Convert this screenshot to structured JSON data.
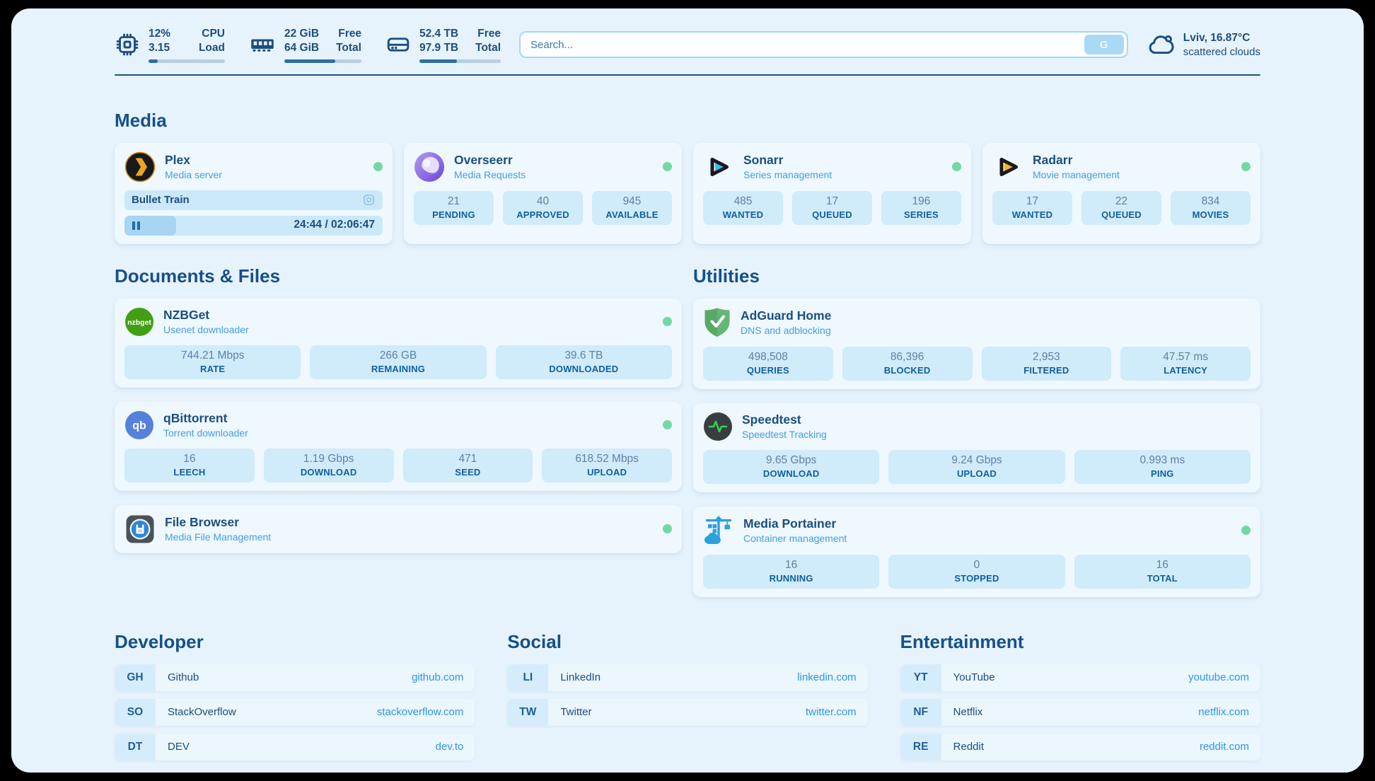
{
  "colors": {
    "page_bg": "#e7f3fc",
    "card_bg": "#eef8fe",
    "tile_bg": "#d0ebfa",
    "header_text": "#155089",
    "title_text": "#1c4e7e",
    "subtitle_text": "#459de2",
    "link_url": "#2e96e6",
    "status_online": "#72d9a2",
    "progress_fill": "#2e6da4"
  },
  "topbar": {
    "stats": [
      {
        "icon": "cpu-icon",
        "value_top": "12%",
        "value_bottom": "3.15",
        "label_top": "CPU",
        "label_bottom": "Load",
        "progress_pct": 12
      },
      {
        "icon": "ram-icon",
        "value_top": "22 GiB",
        "value_bottom": "64 GiB",
        "label_top": "Free",
        "label_bottom": "Total",
        "progress_pct": 66
      },
      {
        "icon": "disk-icon",
        "value_top": "52.4 TB",
        "value_bottom": "97.9 TB",
        "label_top": "Free",
        "label_bottom": "Total",
        "progress_pct": 46
      }
    ],
    "search": {
      "placeholder": "Search...",
      "button_label": "G"
    },
    "weather": {
      "icon": "cloud-icon",
      "location_temp": "Lviv, 16.87°C",
      "condition": "scattered clouds"
    }
  },
  "media": {
    "header": "Media",
    "plex": {
      "icon": "plex-icon",
      "title": "Plex",
      "subtitle": "Media server",
      "status": "online",
      "now_playing": "Bullet Train",
      "time_display": "24:44 / 02:06:47",
      "progress_pct": 20
    },
    "overseerr": {
      "icon": "overseerr-icon",
      "title": "Overseerr",
      "subtitle": "Media Requests",
      "status": "online",
      "stats": [
        {
          "value": "21",
          "label": "PENDING"
        },
        {
          "value": "40",
          "label": "APPROVED"
        },
        {
          "value": "945",
          "label": "AVAILABLE"
        }
      ]
    },
    "sonarr": {
      "icon": "sonarr-icon",
      "title": "Sonarr",
      "subtitle": "Series management",
      "status": "online",
      "stats": [
        {
          "value": "485",
          "label": "WANTED"
        },
        {
          "value": "17",
          "label": "QUEUED"
        },
        {
          "value": "196",
          "label": "SERIES"
        }
      ]
    },
    "radarr": {
      "icon": "radarr-icon",
      "title": "Radarr",
      "subtitle": "Movie management",
      "status": "online",
      "stats": [
        {
          "value": "17",
          "label": "WANTED"
        },
        {
          "value": "22",
          "label": "QUEUED"
        },
        {
          "value": "834",
          "label": "MOVIES"
        }
      ]
    }
  },
  "documents": {
    "header": "Documents & Files",
    "nzbget": {
      "icon": "nzbget-icon",
      "title": "NZBGet",
      "subtitle": "Usenet downloader",
      "status": "online",
      "stats": [
        {
          "value": "744.21 Mbps",
          "label": "RATE"
        },
        {
          "value": "266 GB",
          "label": "REMAINING"
        },
        {
          "value": "39.6 TB",
          "label": "DOWNLOADED"
        }
      ]
    },
    "qbittorrent": {
      "icon": "qbittorrent-icon",
      "title": "qBittorrent",
      "subtitle": "Torrent downloader",
      "status": "online",
      "stats": [
        {
          "value": "16",
          "label": "LEECH"
        },
        {
          "value": "1.19 Gbps",
          "label": "DOWNLOAD"
        },
        {
          "value": "471",
          "label": "SEED"
        },
        {
          "value": "618.52 Mbps",
          "label": "UPLOAD"
        }
      ]
    },
    "filebrowser": {
      "icon": "filebrowser-icon",
      "title": "File Browser",
      "subtitle": "Media File Management",
      "status": "online"
    }
  },
  "utilities": {
    "header": "Utilities",
    "adguard": {
      "icon": "adguard-icon",
      "title": "AdGuard Home",
      "subtitle": "DNS and adblocking",
      "stats": [
        {
          "value": "498,508",
          "label": "QUERIES"
        },
        {
          "value": "86,396",
          "label": "BLOCKED"
        },
        {
          "value": "2,953",
          "label": "FILTERED"
        },
        {
          "value": "47.57 ms",
          "label": "LATENCY"
        }
      ]
    },
    "speedtest": {
      "icon": "speedtest-icon",
      "title": "Speedtest",
      "subtitle": "Speedtest Tracking",
      "stats": [
        {
          "value": "9.65 Gbps",
          "label": "DOWNLOAD"
        },
        {
          "value": "9.24 Gbps",
          "label": "UPLOAD"
        },
        {
          "value": "0.993 ms",
          "label": "PING"
        }
      ]
    },
    "portainer": {
      "icon": "portainer-icon",
      "title": "Media Portainer",
      "subtitle": "Container management",
      "status": "online",
      "stats": [
        {
          "value": "16",
          "label": "RUNNING"
        },
        {
          "value": "0",
          "label": "STOPPED"
        },
        {
          "value": "16",
          "label": "TOTAL"
        }
      ]
    }
  },
  "links": {
    "developer": {
      "header": "Developer",
      "items": [
        {
          "abbr": "GH",
          "name": "Github",
          "url": "github.com"
        },
        {
          "abbr": "SO",
          "name": "StackOverflow",
          "url": "stackoverflow.com"
        },
        {
          "abbr": "DT",
          "name": "DEV",
          "url": "dev.to"
        }
      ]
    },
    "social": {
      "header": "Social",
      "items": [
        {
          "abbr": "LI",
          "name": "LinkedIn",
          "url": "linkedin.com"
        },
        {
          "abbr": "TW",
          "name": "Twitter",
          "url": "twitter.com"
        }
      ]
    },
    "entertainment": {
      "header": "Entertainment",
      "items": [
        {
          "abbr": "YT",
          "name": "YouTube",
          "url": "youtube.com"
        },
        {
          "abbr": "NF",
          "name": "Netflix",
          "url": "netflix.com"
        },
        {
          "abbr": "RE",
          "name": "Reddit",
          "url": "reddit.com"
        }
      ]
    }
  },
  "icons": {
    "nzbget_label": "nzbget",
    "qbittorrent_label": "qb"
  }
}
